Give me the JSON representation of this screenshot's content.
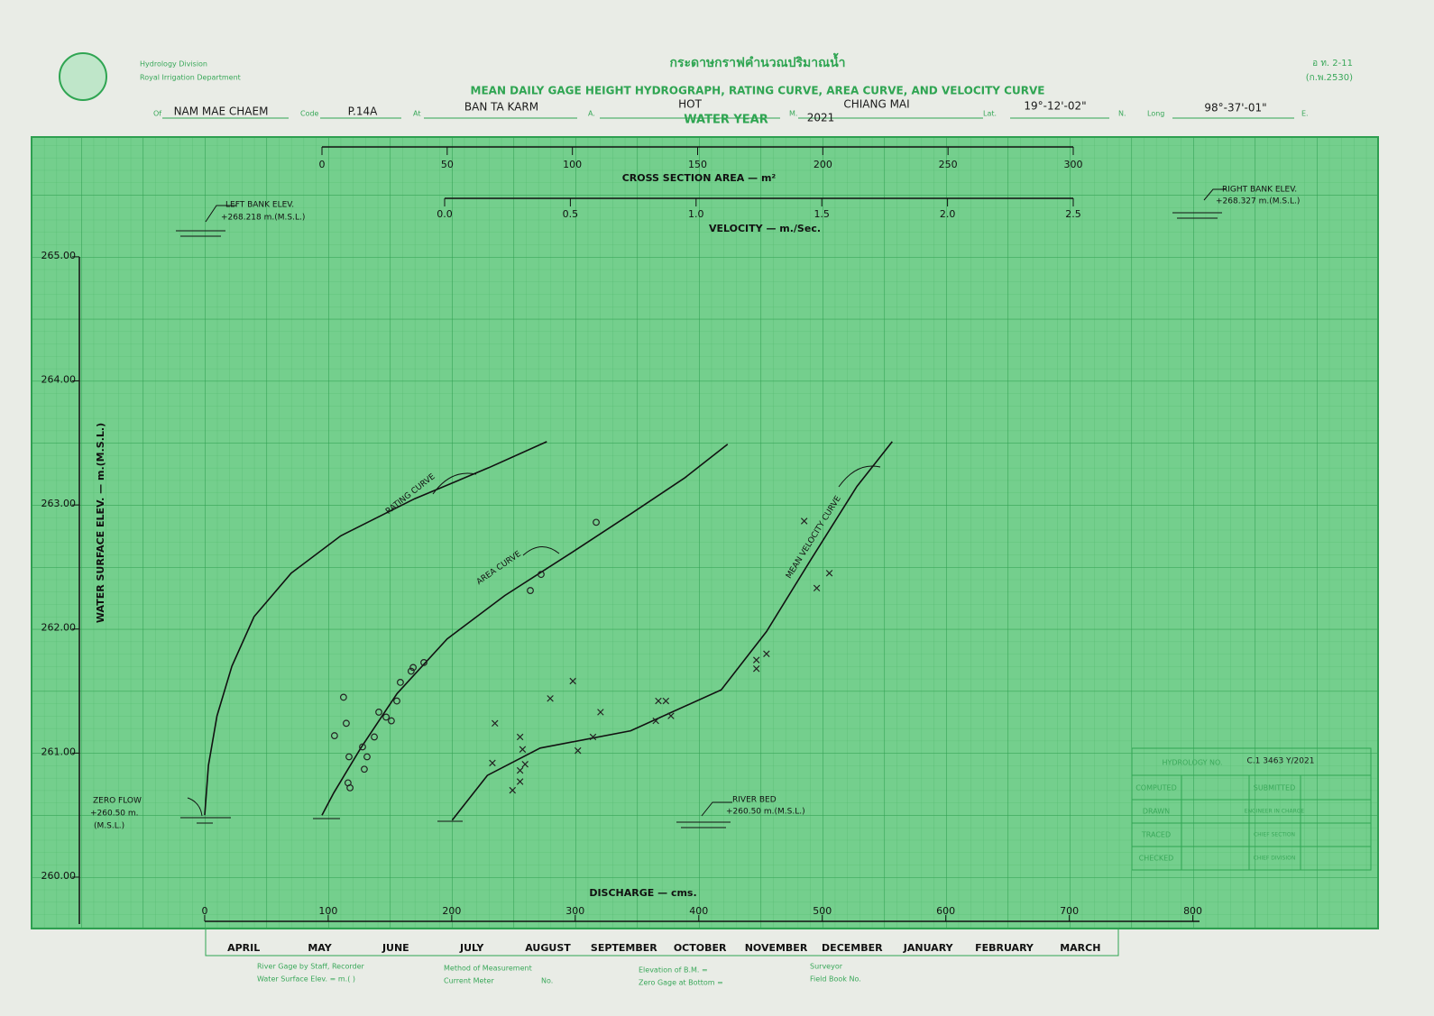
{
  "header": {
    "org1": "Hydrology Division",
    "org2": "Royal Irrigation Department",
    "thai_title": "กระดาษกราฟคำนวณปริมาณน้ำ",
    "form_no": "อ ท. 2-11",
    "form_year": "(ก.พ.2530)",
    "of_label": "Of",
    "river": "NAM MAE CHAEM",
    "code_label": "Code",
    "code": "P.14A",
    "at_label": "At",
    "station": "BAN TA KARM",
    "a_label": "A.",
    "amphoe": "HOT",
    "m_label": "M.",
    "province": "CHIANG MAI",
    "lat_label": "Lat.",
    "lat": "19°-12'-02\"",
    "n_label": "N.",
    "long_label": "Long",
    "long": "98°-37'-01\"",
    "e_label": "E.",
    "wy_label": "WATER YEAR",
    "water_year": "2021"
  },
  "chart_data": {
    "type": "scatter",
    "title": "MEAN DAILY GAGE HEIGHT HYDROGRAPH, RATING CURVE, AREA CURVE, AND VELOCITY CURVE",
    "ylabel": "WATER SURFACE ELEV. — m.(M.S.L.)",
    "ylim": [
      259.8,
      265.9
    ],
    "yticks": [
      {
        "value": 260,
        "label": "260.00"
      },
      {
        "value": 261,
        "label": "261.00"
      },
      {
        "value": 262,
        "label": "262.00"
      },
      {
        "value": 263,
        "label": "263.00"
      },
      {
        "value": 264,
        "label": "264.00"
      },
      {
        "value": 265,
        "label": "265.00"
      }
    ],
    "xlabel": "DISCHARGE — cms.",
    "xlim": [
      -100,
      950
    ],
    "xticks": [
      0,
      100,
      200,
      300,
      400,
      500,
      600,
      700,
      800
    ],
    "x2label": "CROSS SECTION AREA — m²",
    "x2lim": [
      0,
      300
    ],
    "x2ticks": [
      0,
      50,
      100,
      150,
      200,
      250,
      300
    ],
    "x3label": "VELOCITY — m./Sec.",
    "x3lim": [
      0,
      2.5
    ],
    "x3ticks": [
      {
        "value": 0,
        "label": "0.0"
      },
      {
        "value": 0.5,
        "label": "0.5"
      },
      {
        "value": 1,
        "label": "1.0"
      },
      {
        "value": 1.5,
        "label": "1.5"
      },
      {
        "value": 2,
        "label": "2.0"
      },
      {
        "value": 2.5,
        "label": "2.5"
      }
    ],
    "series": [
      {
        "name": "RATING CURVE",
        "kind": "line",
        "axis": "x",
        "color": "#111111",
        "x": [
          0,
          3,
          10,
          22,
          40,
          70,
          110,
          170,
          230,
          277
        ],
        "values": [
          260.5,
          260.9,
          261.3,
          261.7,
          262.1,
          262.45,
          262.75,
          263.05,
          263.3,
          263.51
        ]
      },
      {
        "name": "AREA CURVE",
        "kind": "line",
        "axis": "x2",
        "color": "#111111",
        "x": [
          0,
          4.7,
          15.5,
          30,
          50,
          73,
          100,
          123.5,
          145,
          162
        ],
        "values": [
          260.5,
          260.68,
          261.04,
          261.48,
          261.92,
          262.27,
          262.62,
          262.93,
          263.22,
          263.49
        ]
      },
      {
        "name": "MEAN VELOCITY CURVE",
        "kind": "line",
        "axis": "x3",
        "color": "#111111",
        "x": [
          0.03,
          0.17,
          0.38,
          0.74,
          1.1,
          1.28,
          1.46,
          1.64,
          1.78
        ],
        "values": [
          260.46,
          260.82,
          261.04,
          261.18,
          261.51,
          261.98,
          262.57,
          263.15,
          263.51
        ]
      },
      {
        "kind": "points",
        "marker": "o",
        "axis": "x2",
        "color": "#222222",
        "x": [
          8.6,
          9.7,
          5.0,
          10.8,
          10.4,
          11.2,
          16.2,
          16.9,
          18.0,
          20.9,
          22.7,
          25.6,
          27.7,
          29.9,
          31.3,
          35.6,
          36.4,
          40.7,
          83.2,
          87.5,
          109.5
        ],
        "values": [
          261.45,
          261.24,
          261.14,
          260.97,
          260.76,
          260.72,
          261.05,
          260.87,
          260.97,
          261.13,
          261.33,
          261.29,
          261.26,
          261.42,
          261.57,
          261.66,
          261.69,
          261.73,
          262.31,
          262.44,
          262.86
        ]
      },
      {
        "kind": "points",
        "marker": "x",
        "axis": "x3",
        "color": "#222222",
        "x": [
          0.2,
          0.19,
          0.27,
          0.3,
          0.3,
          0.3,
          0.31,
          0.32,
          0.42,
          0.51,
          0.53,
          0.59,
          0.62,
          0.84,
          0.85,
          0.88,
          0.9,
          1.24,
          1.24,
          1.28,
          1.43,
          1.48,
          1.53
        ],
        "values": [
          261.24,
          260.92,
          260.7,
          260.86,
          260.77,
          261.13,
          261.03,
          260.91,
          261.44,
          261.58,
          261.02,
          261.13,
          261.33,
          261.26,
          261.42,
          261.42,
          261.3,
          261.75,
          261.68,
          261.8,
          262.87,
          262.33,
          262.45
        ]
      }
    ],
    "annotations": {
      "left_bank": "LEFT BANK ELEV.",
      "left_bank_elev": "+268.218 m.(M.S.L.)",
      "right_bank": "RIGHT BANK ELEV.",
      "right_bank_elev": "+268.327 m.(M.S.L.)",
      "zero_flow": "ZERO FLOW",
      "zero_flow_elev": "+260.50 m.",
      "zero_flow_msl": "(M.S.L.)",
      "river_bed": "RIVER BED",
      "river_bed_elev": "+260.50 m.(M.S.L.)"
    },
    "months": [
      "APRIL",
      "MAY",
      "JUNE",
      "JULY",
      "AUGUST",
      "SEPTEMBER",
      "OCTOBER",
      "NOVEMBER",
      "DECEMBER",
      "JANUARY",
      "FEBRUARY",
      "MARCH"
    ]
  },
  "signature_box": {
    "hydrology_no_label": "HYDROLOGY NO.",
    "hydrology_no": "C.1 3463 Y/2021",
    "computed": "COMPUTED",
    "submitted": "SUBMITTED",
    "drawn": "DRAWN",
    "engineer": "ENGINEER IN CHARGE",
    "traced": "TRACED",
    "chief_section": "CHIEF SECTION",
    "checked": "CHECKED",
    "chief_division": "CHIEF DIVISION"
  },
  "footer": {
    "gage": "River Gage by Staff, Recorder",
    "wse": "Water Surface Elev. = m.(        )",
    "method": "Method of Measurement",
    "meter": "Current Meter",
    "no": "No.",
    "bm": "Elevation of B.M. =",
    "zero_gage": "Zero Gage at Bottom =",
    "surveyor": "Surveyor",
    "field_book": "Field Book No."
  }
}
